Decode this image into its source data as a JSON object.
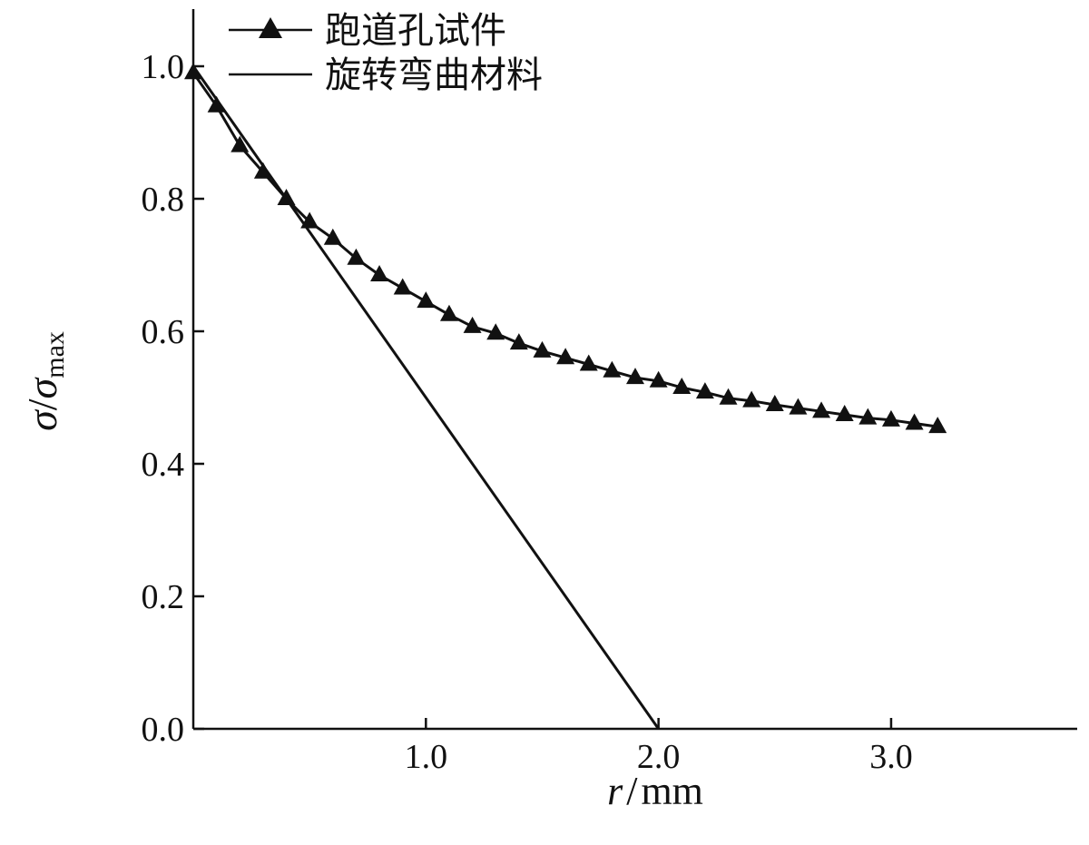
{
  "chart_data": {
    "type": "line",
    "xlabel": {
      "symbol": "r",
      "separator": "/",
      "unit": "mm"
    },
    "ylabel": {
      "symbol": "σ",
      "separator": "/",
      "symbol2": "σ",
      "subscript": "max"
    },
    "xlim": [
      0,
      3.8
    ],
    "ylim": [
      0,
      1.1
    ],
    "x_ticks": [
      {
        "value": 1.0,
        "label": "1.0"
      },
      {
        "value": 2.0,
        "label": "2.0"
      },
      {
        "value": 3.0,
        "label": "3.0"
      }
    ],
    "y_ticks": [
      {
        "value": 0.0,
        "label": "0.0"
      },
      {
        "value": 0.2,
        "label": "0.2"
      },
      {
        "value": 0.4,
        "label": "0.4"
      },
      {
        "value": 0.6,
        "label": "0.6"
      },
      {
        "value": 0.8,
        "label": "0.8"
      },
      {
        "value": 1.0,
        "label": "1.0"
      }
    ],
    "grid": false,
    "legend_position": "top-left",
    "series": [
      {
        "name": "跑道孔试件",
        "marker": "triangle",
        "x": [
          0.0,
          0.1,
          0.2,
          0.3,
          0.4,
          0.5,
          0.6,
          0.7,
          0.8,
          0.9,
          1.0,
          1.1,
          1.2,
          1.3,
          1.4,
          1.5,
          1.6,
          1.7,
          1.8,
          1.9,
          2.0,
          2.1,
          2.2,
          2.3,
          2.4,
          2.5,
          2.6,
          2.7,
          2.8,
          2.9,
          3.0,
          3.1,
          3.2
        ],
        "y": [
          0.99,
          0.94,
          0.88,
          0.84,
          0.8,
          0.765,
          0.74,
          0.71,
          0.685,
          0.665,
          0.645,
          0.625,
          0.607,
          0.597,
          0.582,
          0.57,
          0.56,
          0.55,
          0.54,
          0.53,
          0.525,
          0.515,
          0.508,
          0.499,
          0.495,
          0.489,
          0.484,
          0.479,
          0.474,
          0.469,
          0.466,
          0.461,
          0.456
        ]
      },
      {
        "name": "旋转弯曲材料",
        "marker": "none",
        "x": [
          0.0,
          2.0
        ],
        "y": [
          1.0,
          0.0
        ]
      }
    ]
  }
}
